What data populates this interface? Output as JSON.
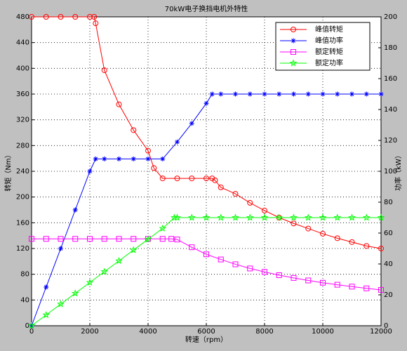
{
  "chart_data": {
    "type": "line",
    "title": "70kW电子换挡电机外特性",
    "xlabel": "转速（rpm）",
    "ylabel": "转矩（Nm）",
    "y2label": "功率（kW）",
    "xlim": [
      0,
      12000
    ],
    "xticks": [
      0,
      2000,
      4000,
      6000,
      8000,
      10000,
      12000
    ],
    "ylim": [
      0,
      480
    ],
    "yticks": [
      0,
      40,
      80,
      120,
      160,
      200,
      240,
      280,
      320,
      360,
      400,
      440,
      480
    ],
    "y2lim": [
      0,
      200
    ],
    "y2ticks": [
      0,
      20,
      40,
      60,
      80,
      100,
      120,
      140,
      160,
      180,
      200
    ],
    "grid": true,
    "legend": "upper right",
    "series": [
      {
        "name": "峰值转矩",
        "color": "#ff0000",
        "marker": "circle",
        "axis": "y",
        "x": [
          0,
          500,
          1000,
          1500,
          2000,
          2150,
          2200,
          2500,
          3000,
          3500,
          4000,
          4200,
          4500,
          5000,
          5500,
          6000,
          6200,
          6300,
          6500,
          7000,
          7500,
          8000,
          8500,
          9000,
          9500,
          10000,
          10500,
          11000,
          11500,
          12000
        ],
        "values": [
          480,
          480,
          480,
          480,
          480,
          480,
          470,
          397,
          344,
          304,
          272,
          245,
          229,
          229,
          229,
          229,
          229,
          226,
          215,
          205,
          191,
          179,
          168,
          159,
          151,
          143,
          136,
          130,
          124,
          120
        ]
      },
      {
        "name": "峰值功率",
        "color": "#0000ff",
        "marker": "star",
        "axis": "y2",
        "x": [
          0,
          500,
          1000,
          1500,
          2000,
          2200,
          2500,
          3000,
          3500,
          4000,
          4500,
          5000,
          5500,
          6000,
          6200,
          6500,
          7000,
          7500,
          8000,
          8500,
          9000,
          9500,
          10000,
          10500,
          11000,
          11500,
          12000
        ],
        "values": [
          0,
          25,
          50,
          75,
          100,
          108,
          108,
          108,
          108,
          108,
          108,
          119,
          131,
          144,
          150,
          150,
          150,
          150,
          150,
          150,
          150,
          150,
          150,
          150,
          150,
          150,
          150
        ]
      },
      {
        "name": "额定转矩",
        "color": "#ff00ff",
        "marker": "square",
        "axis": "y",
        "x": [
          0,
          500,
          1000,
          1500,
          2000,
          2500,
          3000,
          3500,
          4000,
          4500,
          4800,
          5000,
          5500,
          6000,
          6500,
          7000,
          7500,
          8000,
          8500,
          9000,
          9500,
          10000,
          10500,
          11000,
          11500,
          12000
        ],
        "values": [
          135,
          135,
          135,
          135,
          135,
          135,
          135,
          135,
          135,
          135,
          135,
          134,
          122,
          111,
          103,
          95.5,
          89,
          83.6,
          78.6,
          74.3,
          70.4,
          66.8,
          63.7,
          60.8,
          58.1,
          55.7
        ]
      },
      {
        "name": "额定功率",
        "color": "#00ff00",
        "marker": "pentagram",
        "axis": "y2",
        "x": [
          0,
          500,
          1000,
          1500,
          2000,
          2500,
          3000,
          3500,
          4000,
          4500,
          4900,
          5000,
          5500,
          6000,
          6500,
          7000,
          7500,
          8000,
          8500,
          9000,
          9500,
          10000,
          10500,
          11000,
          11500,
          12000
        ],
        "values": [
          0,
          7,
          14,
          21,
          28,
          35,
          42,
          49,
          56,
          63,
          70,
          70,
          70,
          70,
          70,
          70,
          70,
          70,
          70,
          70,
          70,
          70,
          70,
          70,
          70,
          70
        ]
      }
    ]
  }
}
